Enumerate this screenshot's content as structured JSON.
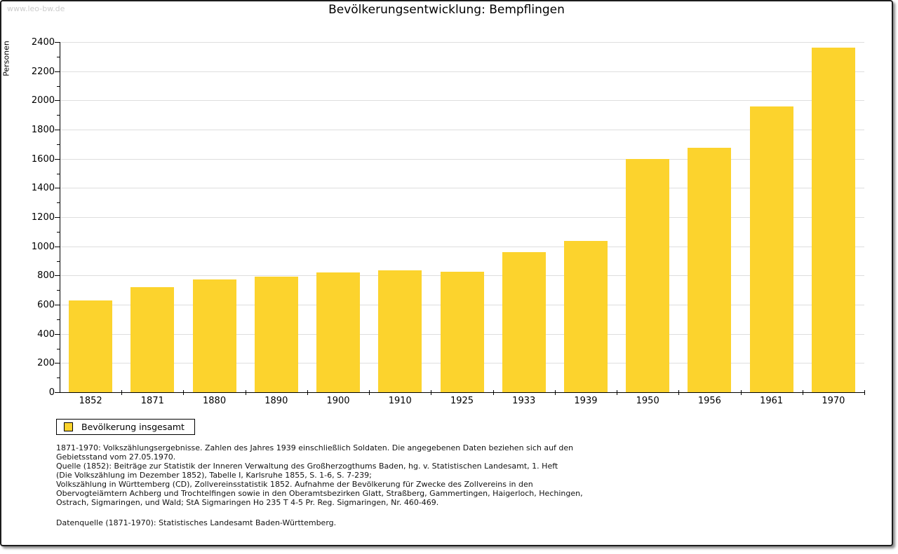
{
  "header": {
    "watermark": "www.leo-bw.de",
    "title": "Bevölkerungsentwicklung: Bempflingen"
  },
  "chart_data": {
    "type": "bar",
    "title": "Bevölkerungsentwicklung: Bempflingen",
    "xlabel": "",
    "ylabel": "Personen",
    "categories": [
      "1852",
      "1871",
      "1880",
      "1890",
      "1900",
      "1910",
      "1925",
      "1933",
      "1939",
      "1950",
      "1956",
      "1961",
      "1970"
    ],
    "values": [
      630,
      720,
      775,
      790,
      820,
      835,
      827,
      960,
      1037,
      1597,
      1675,
      1960,
      2360
    ],
    "ylim": [
      0,
      2400
    ],
    "ytick_major": 200,
    "ytick_minor": 100,
    "grid": true,
    "legend_position": "bottom-left",
    "bar_color": "#FCD32D",
    "grid_color": "#DEDEDE",
    "axis_color": "#000000"
  },
  "legend": {
    "label": "Bevölkerung insgesamt"
  },
  "footer": {
    "lines": [
      "1871-1970: Volkszählungsergebnisse. Zahlen des Jahres 1939 einschließlich Soldaten. Die angegebenen Daten beziehen sich auf den",
      "Gebietsstand vom 27.05.1970.",
      "Quelle (1852): Beiträge zur Statistik der Inneren Verwaltung des Großherzogthums Baden, hg. v. Statistischen Landesamt, 1. Heft",
      "(Die Volkszählung im Dezember 1852), Tabelle I, Karlsruhe 1855, S. 1-6, S. 7-239;",
      "Volkszählung in Württemberg (CD), Zollvereinsstatistik 1852. Aufnahme der Bevölkerung für Zwecke des Zollvereins in den",
      "Obervogteiämtern Achberg und Trochtelfingen sowie in den Oberamtsbezirken Glatt, Straßberg, Gammertingen, Haigerloch, Hechingen,",
      "Ostrach, Sigmaringen, und Wald; StA Sigmaringen Ho 235 T 4-5 Pr. Reg. Sigmaringen, Nr. 460-469."
    ],
    "datasource": "Datenquelle (1871-1970): Statistisches Landesamt Baden-Württemberg."
  }
}
